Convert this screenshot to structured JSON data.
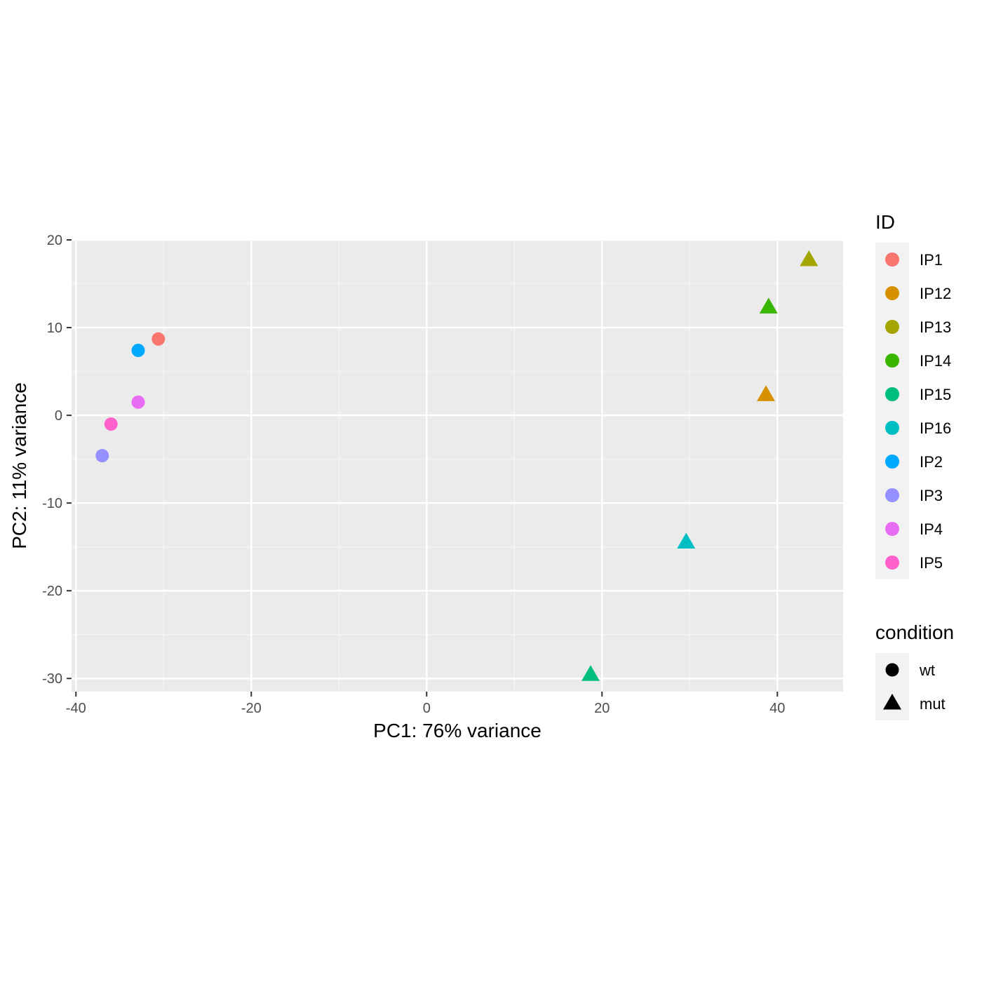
{
  "chart_data": {
    "type": "scatter",
    "xlabel": "PC1: 76% variance",
    "ylabel": "PC2: 11% variance",
    "xlim": [
      -40.5,
      47.5
    ],
    "ylim": [
      -31.5,
      20
    ],
    "x_ticks": [
      -40,
      -20,
      0,
      20,
      40
    ],
    "y_ticks": [
      -30,
      -20,
      -10,
      0,
      10,
      20
    ],
    "x_tick_labels": [
      "-40",
      "-20",
      "0",
      "20",
      "40"
    ],
    "y_tick_labels": [
      "-30",
      "-20",
      "-10",
      "0",
      "10",
      "20"
    ],
    "grid": true,
    "legend_position": "right",
    "points": [
      {
        "id": "IP1",
        "condition": "wt",
        "x": -30.6,
        "y": 8.7,
        "color": "#F8766D"
      },
      {
        "id": "IP2",
        "condition": "wt",
        "x": -32.9,
        "y": 7.4,
        "color": "#00A9FF"
      },
      {
        "id": "IP4",
        "condition": "wt",
        "x": -32.9,
        "y": 1.5,
        "color": "#E76BF3"
      },
      {
        "id": "IP5",
        "condition": "wt",
        "x": -36.0,
        "y": -1.0,
        "color": "#FF61CC"
      },
      {
        "id": "IP3",
        "condition": "wt",
        "x": -37.0,
        "y": -4.6,
        "color": "#9590FF"
      },
      {
        "id": "IP13",
        "condition": "mut",
        "x": 43.6,
        "y": 17.7,
        "color": "#A3A500"
      },
      {
        "id": "IP14",
        "condition": "mut",
        "x": 39.0,
        "y": 12.3,
        "color": "#39B600"
      },
      {
        "id": "IP12",
        "condition": "mut",
        "x": 38.7,
        "y": 2.3,
        "color": "#D89000"
      },
      {
        "id": "IP16",
        "condition": "mut",
        "x": 29.6,
        "y": -14.5,
        "color": "#00BFC4"
      },
      {
        "id": "IP15",
        "condition": "mut",
        "x": 18.7,
        "y": -29.6,
        "color": "#00BF7D"
      }
    ],
    "legend_id": {
      "title": "ID",
      "items": [
        {
          "label": "IP1",
          "color": "#F8766D"
        },
        {
          "label": "IP12",
          "color": "#D89000"
        },
        {
          "label": "IP13",
          "color": "#A3A500"
        },
        {
          "label": "IP14",
          "color": "#39B600"
        },
        {
          "label": "IP15",
          "color": "#00BF7D"
        },
        {
          "label": "IP16",
          "color": "#00BFC4"
        },
        {
          "label": "IP2",
          "color": "#00A9FF"
        },
        {
          "label": "IP3",
          "color": "#9590FF"
        },
        {
          "label": "IP4",
          "color": "#E76BF3"
        },
        {
          "label": "IP5",
          "color": "#FF61CC"
        }
      ]
    },
    "legend_condition": {
      "title": "condition",
      "items": [
        {
          "label": "wt",
          "shape": "circle"
        },
        {
          "label": "mut",
          "shape": "triangle"
        }
      ]
    },
    "colors": {
      "panel_background": "#EBEBEB",
      "grid_major": "#FFFFFF",
      "grid_minor": "#F5F5F5",
      "tick_text": "#4D4D4D",
      "legend_key_background": "#F2F2F2"
    }
  }
}
